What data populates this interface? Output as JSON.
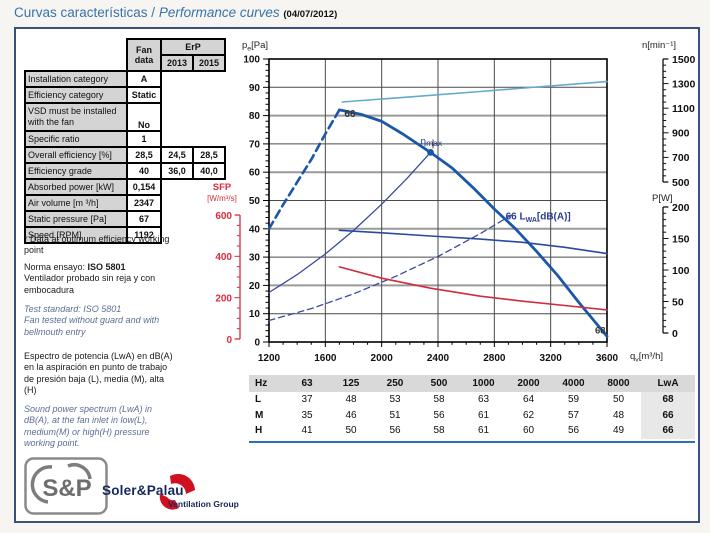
{
  "page": {
    "title_es": "Curvas características",
    "title_sep": " / ",
    "title_en": "Performance curves",
    "title_date": "(04/07/2012)"
  },
  "fan_table": {
    "header_fan": "Fan data",
    "header_erp": "ErP",
    "header_2013": "2013",
    "header_2015": "2015",
    "rows": [
      {
        "label": "Installation category",
        "fan": "A"
      },
      {
        "label": "Efficiency category",
        "fan": "Static"
      },
      {
        "label": "VSD must be installed with the fan",
        "fan": "No"
      },
      {
        "label": "Specific ratio",
        "fan": "1"
      },
      {
        "label": "Overall efficiency [%]",
        "fan": "28,5",
        "e13": "24,5",
        "e15": "28,5"
      },
      {
        "label": "Efficiency grade",
        "fan": "40",
        "e13": "36,0",
        "e15": "40,0"
      },
      {
        "label": "Absorbed power [kW]",
        "fan": "0,154"
      },
      {
        "label": "Air volume [m ³/h]",
        "fan": "2347"
      },
      {
        "label": "Static pressure [Pa]",
        "fan": "67"
      },
      {
        "label": "Speed [RPM]",
        "fan": "1192"
      }
    ]
  },
  "notes": {
    "footnote": "* Data at optimum efficiency working point",
    "norma_label": "Norma ensayo: ",
    "norma_std": "ISO 5801",
    "norma_body": "Ventilador probado sin reja y con embocadura",
    "test_std_1": "Test standard: ISO 5801",
    "test_std_2": "Fan tested without guard and with bellmouth entry",
    "espectro": "Espectro de potencia (LwA) en dB(A) en la aspiración en punto de trabajo de presión baja (L), media (M), alta (H)",
    "sound": "Sound power spectrum (LwA) in dB(A), at the fan inlet in low(L), medium(M) or high(H) pressure working point."
  },
  "chart_data": {
    "type": "line",
    "x_axis": {
      "label_pre": "q",
      "label_sub": "v",
      "label_post": "[m³/h]",
      "min": 1200,
      "max": 3600,
      "ticks": [
        1200,
        1600,
        2000,
        2400,
        2800,
        3200,
        3600
      ],
      "minor_step": 100
    },
    "y_axis_pa": {
      "label_pre": "p",
      "label_sub": "e",
      "label_post": "[Pa]",
      "min": 0,
      "max": 100,
      "ticks": [
        0,
        10,
        20,
        30,
        40,
        50,
        60,
        70,
        80,
        90,
        100
      ],
      "minor_step": 2
    },
    "y_axis_rpm": {
      "label": "n[min⁻¹]",
      "min": 500,
      "max": 1500,
      "ticks": [
        500,
        700,
        900,
        1100,
        1300,
        1500
      ],
      "minor_step": 50
    },
    "y_axis_pw": {
      "label": "P[W]",
      "min": 0,
      "max": 200,
      "ticks": [
        0,
        50,
        100,
        150,
        200
      ],
      "minor_step": 10
    },
    "y_axis_sfp": {
      "label_line1": "SFP",
      "label_line2": "[W/m³/s]",
      "min": 0,
      "max": 600,
      "ticks": [
        0,
        200,
        400,
        600
      ],
      "minor_step": 50
    },
    "working_point": {
      "qv": 2347,
      "pa": 67,
      "label_pre": "η",
      "label_post": "max"
    },
    "series": [
      {
        "name": "pressure-curve-unstable",
        "axis": "pa",
        "color": "#1b57a8",
        "width": 2.6,
        "dash": "8,5",
        "points": [
          [
            1200,
            40
          ],
          [
            1300,
            48.5
          ],
          [
            1400,
            56.5
          ],
          [
            1500,
            64.5
          ],
          [
            1600,
            73.5
          ],
          [
            1700,
            82
          ]
        ]
      },
      {
        "name": "pressure-curve",
        "axis": "pa",
        "color": "#1b57a8",
        "width": 2.8,
        "dash": "",
        "points": [
          [
            1700,
            82
          ],
          [
            1850,
            80.5
          ],
          [
            2000,
            78
          ],
          [
            2150,
            73.5
          ],
          [
            2347,
            67
          ],
          [
            2500,
            61.5
          ],
          [
            2650,
            54.5
          ],
          [
            2800,
            47
          ],
          [
            2950,
            40
          ],
          [
            3100,
            32
          ],
          [
            3250,
            23.5
          ],
          [
            3400,
            14
          ],
          [
            3500,
            8
          ],
          [
            3600,
            2
          ]
        ]
      },
      {
        "name": "system-line-optimum",
        "axis": "pa",
        "color": "#3a4a9e",
        "width": 1.3,
        "dash": "",
        "points": [
          [
            1200,
            17.5
          ],
          [
            1400,
            23.8
          ],
          [
            1600,
            31.1
          ],
          [
            1800,
            39.4
          ],
          [
            2000,
            48.7
          ],
          [
            2180,
            57.8
          ],
          [
            2347,
            67
          ]
        ]
      },
      {
        "name": "system-line-medium",
        "axis": "pa",
        "color": "#3a4a9e",
        "width": 1.3,
        "dash": "6,4",
        "points": [
          [
            1200,
            7.6
          ],
          [
            1500,
            11.8
          ],
          [
            1800,
            17
          ],
          [
            2100,
            23.2
          ],
          [
            2400,
            30.2
          ],
          [
            2700,
            38.3
          ],
          [
            2920,
            44.8
          ]
        ]
      },
      {
        "name": "power-curve",
        "axis": "pw",
        "color": "#2a4a9e",
        "width": 1.6,
        "dash": "",
        "points": [
          [
            1700,
            163
          ],
          [
            2000,
            159
          ],
          [
            2347,
            154
          ],
          [
            2700,
            149
          ],
          [
            3000,
            144
          ],
          [
            3300,
            136
          ],
          [
            3600,
            126
          ]
        ]
      },
      {
        "name": "sfp-curve",
        "axis": "sfp",
        "color": "#d22a3f",
        "width": 1.6,
        "dash": "",
        "points": [
          [
            1700,
            349
          ],
          [
            2000,
            294
          ],
          [
            2347,
            246
          ],
          [
            2700,
            207
          ],
          [
            3000,
            183
          ],
          [
            3300,
            162
          ],
          [
            3600,
            141
          ]
        ]
      },
      {
        "name": "speed-curve",
        "axis": "rpm",
        "color": "#63aacd",
        "width": 1.6,
        "dash": "",
        "points": [
          [
            1720,
            1150
          ],
          [
            2200,
            1192
          ],
          [
            2700,
            1236
          ],
          [
            3100,
            1272
          ],
          [
            3600,
            1316
          ]
        ]
      }
    ],
    "annotations": [
      {
        "pre": "66",
        "sub": "",
        "post": "",
        "q": 1735,
        "pa": 79.5,
        "color": "#333333",
        "size": 10,
        "anchor": "start"
      },
      {
        "pre": "68",
        "sub": "",
        "post": "",
        "q": 3515,
        "pa": 3.0,
        "color": "#333333",
        "size": 9.5,
        "anchor": "start"
      },
      {
        "pre": "66 L",
        "sub": "WA",
        "post": "[dB(A)]",
        "q": 2880,
        "pa": 43.2,
        "color": "#2b3f92",
        "size": 10,
        "anchor": "start"
      }
    ]
  },
  "spectrum_table": {
    "headers": [
      "Hz",
      "63",
      "125",
      "250",
      "500",
      "1000",
      "2000",
      "4000",
      "8000",
      "LwA"
    ],
    "rows": [
      {
        "band": "L",
        "values": [
          37,
          48,
          53,
          58,
          63,
          64,
          59,
          50
        ],
        "lwa": 68
      },
      {
        "band": "M",
        "values": [
          35,
          46,
          51,
          56,
          61,
          62,
          57,
          48
        ],
        "lwa": 66
      },
      {
        "band": "H",
        "values": [
          41,
          50,
          56,
          58,
          61,
          60,
          56,
          49
        ],
        "lwa": 66
      }
    ]
  },
  "logo": {
    "mark": "S&P",
    "company": "Soler&Palau",
    "group": "Ventilation Group"
  }
}
